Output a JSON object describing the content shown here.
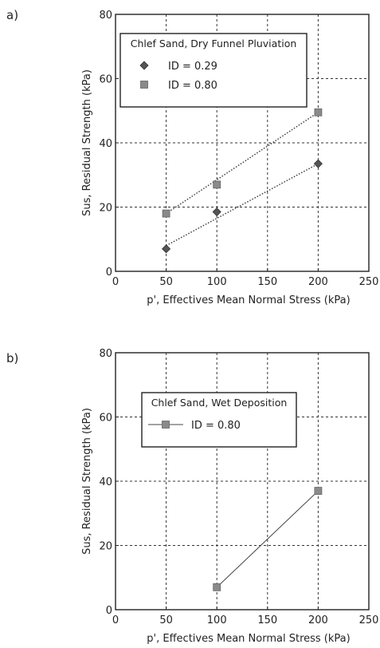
{
  "panels": {
    "a": {
      "letter": "a)"
    },
    "b": {
      "letter": "b)"
    }
  },
  "chart_data": [
    {
      "type": "line",
      "panel": "a)",
      "xlabel": "p', Effectives Mean Normal Stress (kPa)",
      "ylabel": "Sus, Residual Strength (kPa)",
      "xlim": [
        0,
        250
      ],
      "ylim": [
        0,
        80
      ],
      "xticks": [
        0,
        50,
        100,
        150,
        200,
        250
      ],
      "yticks": [
        0,
        20,
        40,
        60,
        80
      ],
      "grid": true,
      "legend_position": "top-left",
      "legend_title": "Chlef Sand, Dry Funnel Pluviation",
      "series": [
        {
          "name": "ID = 0.29",
          "marker": "diamond",
          "color": "#555555",
          "x": [
            50,
            100,
            200
          ],
          "y": [
            7,
            18.5,
            33.5
          ],
          "fit": {
            "x": [
              50,
              200
            ],
            "y": [
              8,
              33.5
            ]
          }
        },
        {
          "name": "ID = 0.80",
          "marker": "square",
          "color": "#8a8a8a",
          "x": [
            50,
            100,
            200
          ],
          "y": [
            18,
            27,
            49.5
          ],
          "fit": {
            "x": [
              50,
              200
            ],
            "y": [
              18,
              49.5
            ]
          }
        }
      ]
    },
    {
      "type": "line",
      "panel": "b)",
      "xlabel": "p', Effectives Mean Normal Stress (kPa)",
      "ylabel": "Sus, Residual Strength (kPa)",
      "xlim": [
        0,
        250
      ],
      "ylim": [
        0,
        80
      ],
      "xticks": [
        0,
        50,
        100,
        150,
        200,
        250
      ],
      "yticks": [
        0,
        20,
        40,
        60,
        80
      ],
      "grid": true,
      "legend_position": "top-center",
      "legend_title": "Chlef Sand, Wet Deposition",
      "series": [
        {
          "name": "ID = 0.80",
          "marker": "square",
          "color": "#8a8a8a",
          "x": [
            100,
            200
          ],
          "y": [
            7,
            37
          ]
        }
      ]
    }
  ]
}
